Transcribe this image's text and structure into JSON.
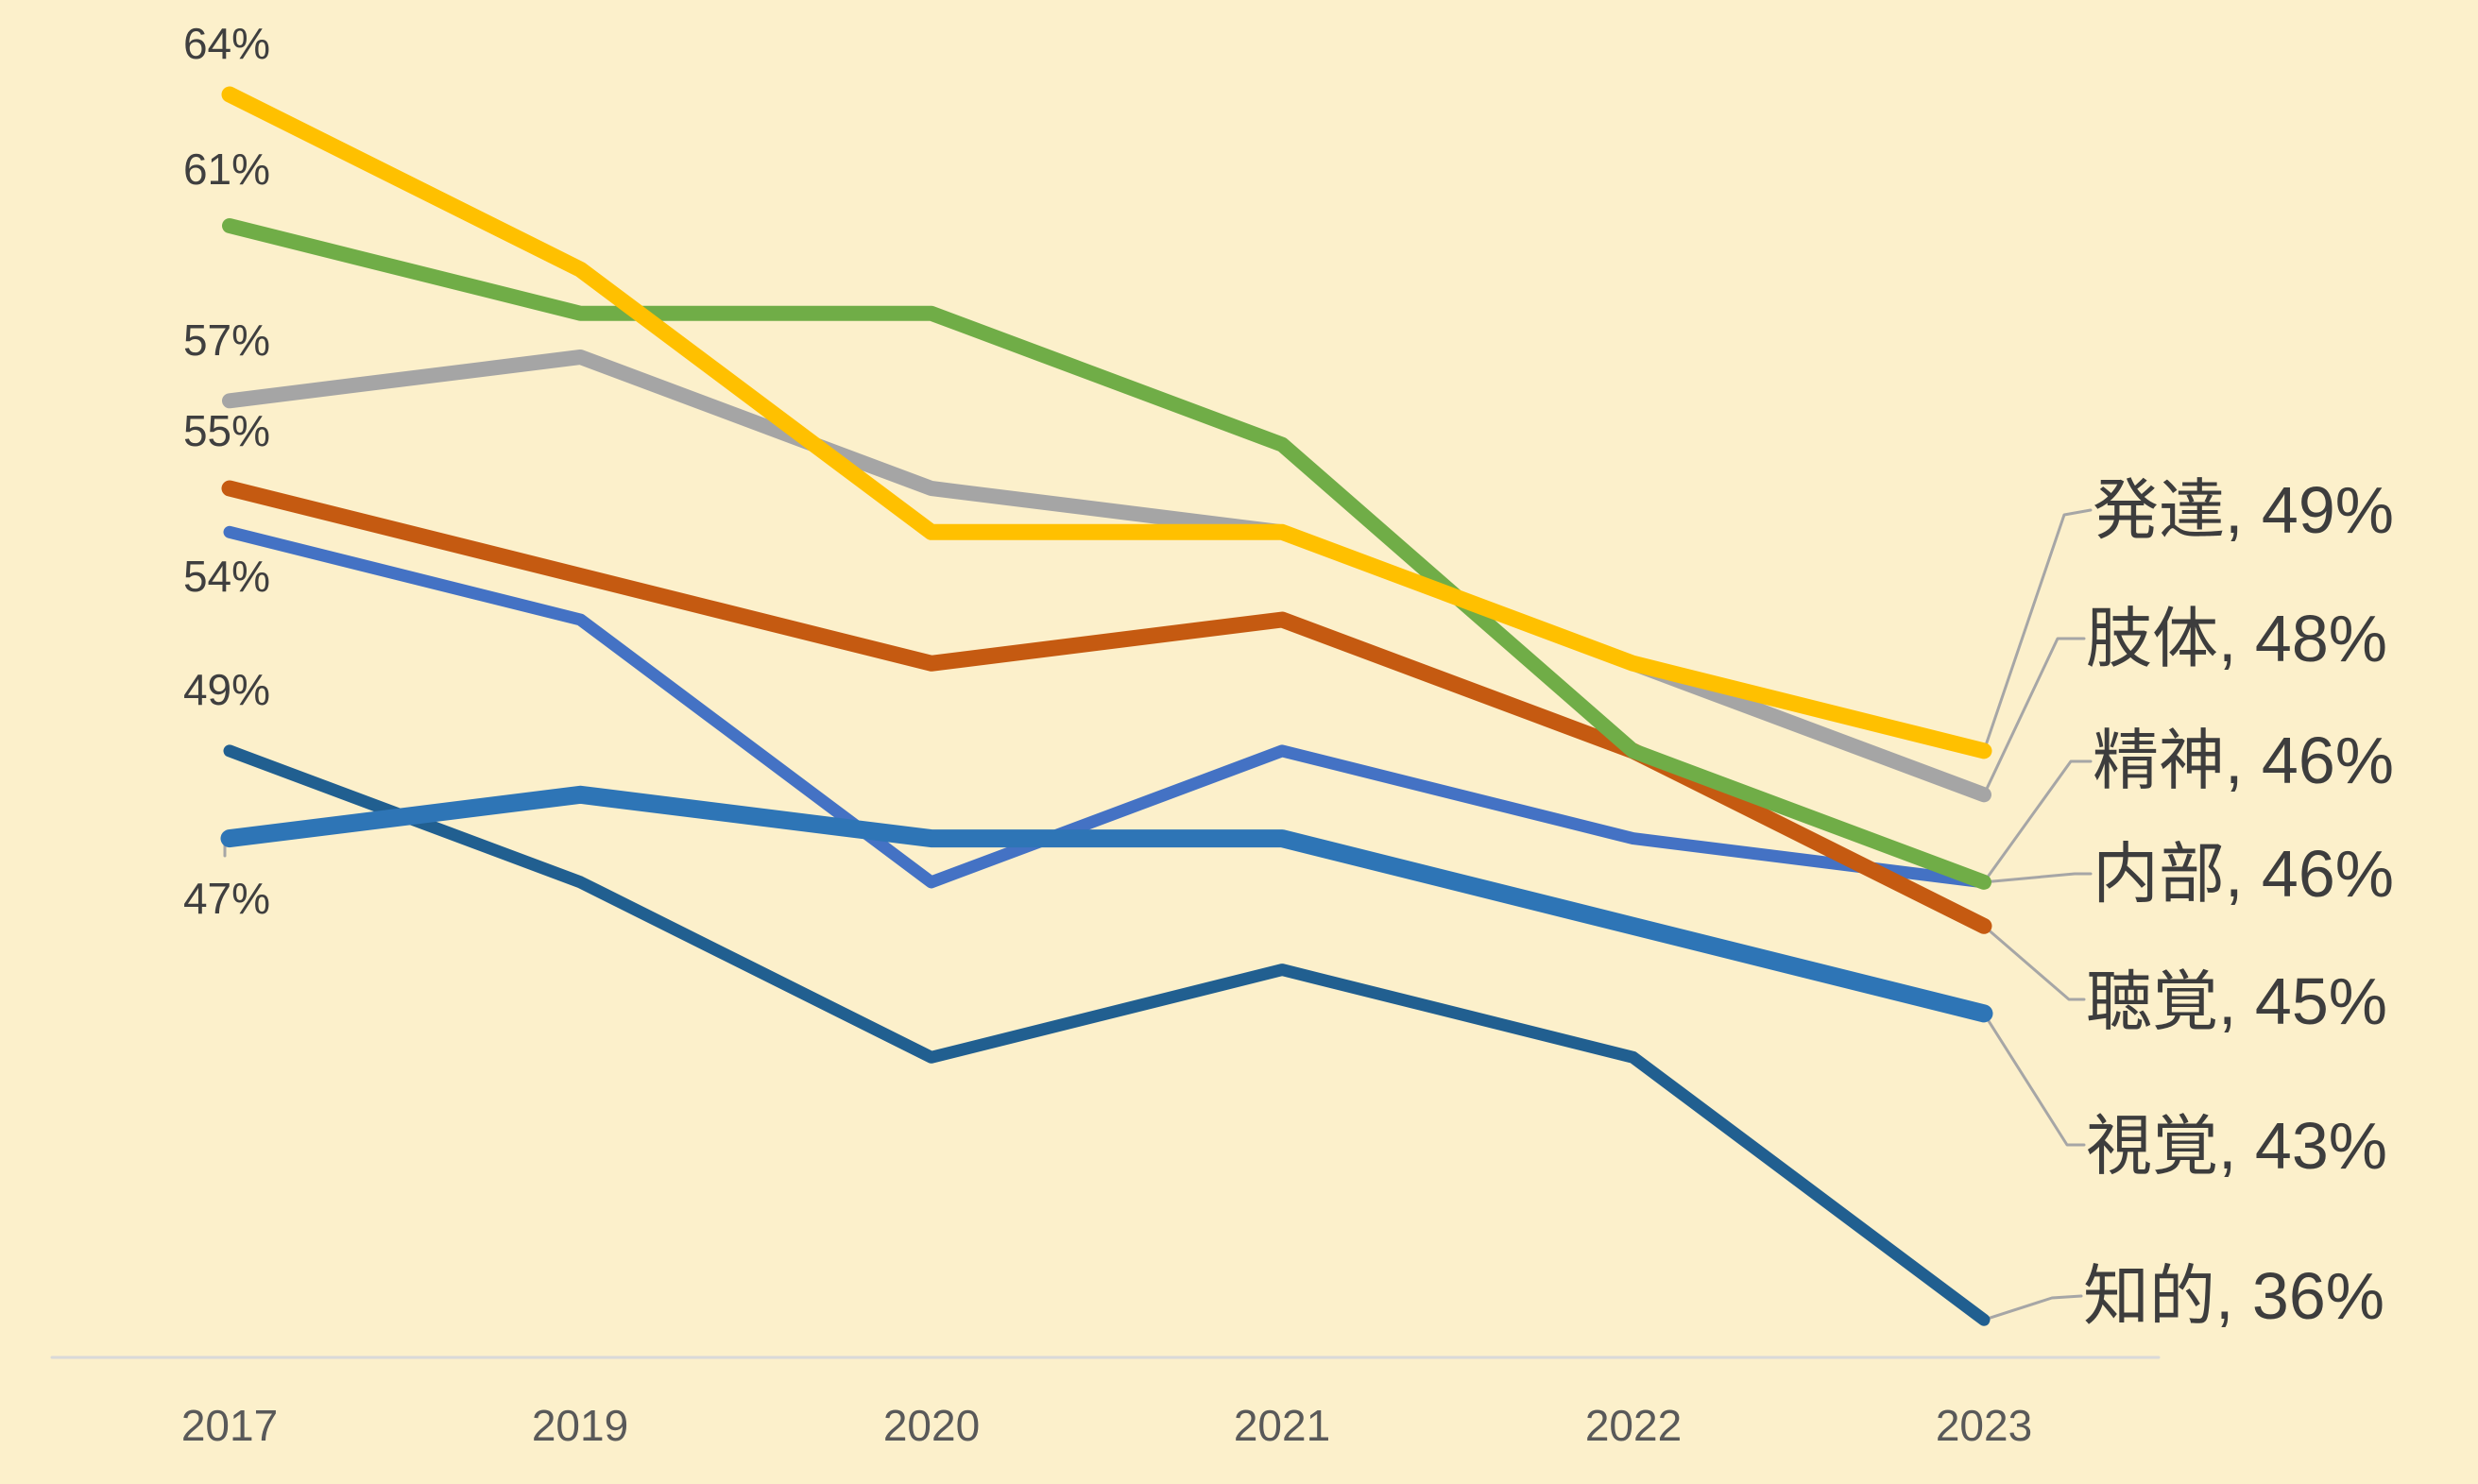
{
  "chart_data": {
    "type": "line",
    "title": "",
    "xlabel": "",
    "ylabel": "",
    "categories": [
      "2017",
      "2019",
      "2020",
      "2021",
      "2022",
      "2023"
    ],
    "series": [
      {
        "name": "発達",
        "color": "#FFC000",
        "stroke_width": 17,
        "values": [
          64,
          60,
          54,
          54,
          51,
          49
        ],
        "first_label": "64%",
        "end_label": "発達, 49%"
      },
      {
        "name": "肢体",
        "color": "#A5A5A5",
        "stroke_width": 16,
        "values": [
          57,
          58,
          55,
          54,
          51,
          48
        ],
        "first_label": "57%",
        "end_label": "肢体, 48%"
      },
      {
        "name": "精神",
        "color": "#70AD47",
        "stroke_width": 16,
        "values": [
          61,
          59,
          59,
          56,
          49,
          46
        ],
        "first_label": "61%",
        "end_label": "精神, 46%"
      },
      {
        "name": "内部",
        "color": "#4472C4",
        "stroke_width": 13,
        "values": [
          54,
          52,
          46,
          49,
          47,
          46
        ],
        "first_label": "54%",
        "end_label": "内部, 46%"
      },
      {
        "name": "聴覚",
        "color": "#C55A11",
        "stroke_width": 17,
        "values": [
          55,
          53,
          51,
          52,
          49,
          45
        ],
        "first_label": "55%",
        "end_label": "聴覚, 45%"
      },
      {
        "name": "視覚",
        "color": "#2E75B6",
        "stroke_width": 19,
        "values": [
          47,
          48,
          47,
          47,
          45,
          43
        ],
        "first_label": "47%",
        "end_label": "視覚, 43%"
      },
      {
        "name": "知的",
        "color": "#215F90",
        "stroke_width": 13,
        "values": [
          49,
          46,
          42,
          44,
          42,
          36
        ],
        "first_label": "49%",
        "end_label": "知的, 36%"
      }
    ],
    "x_axis_labels": [
      "2017",
      "2019",
      "2020",
      "2021",
      "2022",
      "2023"
    ],
    "ylim": [
      34,
      66
    ],
    "grid": false,
    "y_axis_visible": false,
    "legend_position": "end-of-line-callouts"
  },
  "colors": {
    "background": "#FCF0CB",
    "axis_line": "#D9D9D9",
    "leader_line": "#A6A6A6",
    "point_label_text": "#3F3F3F",
    "callout_text": "#3D3D3D",
    "axis_text": "#595959"
  }
}
